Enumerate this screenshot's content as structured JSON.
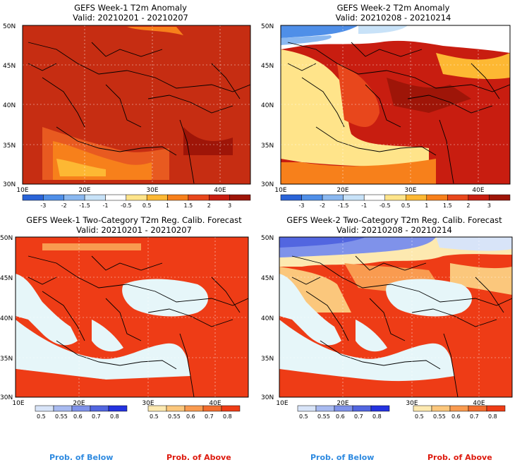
{
  "panels": [
    {
      "title": "GEFS Week-1 T2m Anomaly",
      "valid": "Valid: 20210201 - 20210207"
    },
    {
      "title": "GEFS Week-2 T2m Anomaly",
      "valid": "Valid: 20210208 - 20210214"
    },
    {
      "title": "GEFS Week-1 Two-Category T2m Reg. Calib. Forecast",
      "valid": "Valid: 20210201 - 20210207"
    },
    {
      "title": "GEFS Week-2 Two-Category T2m Reg. Calib. Forecast",
      "valid": "Valid: 20210208 - 20210214"
    }
  ],
  "map_axes": {
    "lat_labels": [
      "50N",
      "45N",
      "40N",
      "35N",
      "30N"
    ],
    "lon_labels": [
      "10E",
      "20E",
      "30E",
      "40E"
    ]
  },
  "anomaly_colorbar": {
    "labels": [
      "-3",
      "-2",
      "-1.5",
      "-1",
      "-0.5",
      "0.5",
      "1",
      "1.5",
      "2",
      "3"
    ],
    "colors": [
      "#2a64d8",
      "#4f8fe8",
      "#8ab8f0",
      "#c8e2f8",
      "#ffffff",
      "#ffe48a",
      "#fdb833",
      "#f7801b",
      "#e8471c",
      "#c81d10",
      "#9e1508"
    ]
  },
  "prob_below_bar": {
    "labels": [
      "0.5",
      "0.55",
      "0.6",
      "0.7",
      "0.8"
    ],
    "colors": [
      "#d8e4f8",
      "#a8baf0",
      "#7f92ea",
      "#5266e0",
      "#2432e0"
    ]
  },
  "prob_above_bar": {
    "labels": [
      "0.5",
      "0.55",
      "0.6",
      "0.7",
      "0.8"
    ],
    "colors": [
      "#fde9b0",
      "#fbc77c",
      "#f99b50",
      "#f26d2e",
      "#ee3c16"
    ]
  },
  "legend": {
    "below": "Prob. of Below",
    "above": "Prob. of Above",
    "below_color": "#2e8ae0",
    "above_color": "#dd1a0e"
  },
  "map_colors": {
    "land_anomaly_w1": "#c62d12",
    "sea_prob": "#e6f6f9",
    "land_prob_above": "#ee3c16"
  }
}
